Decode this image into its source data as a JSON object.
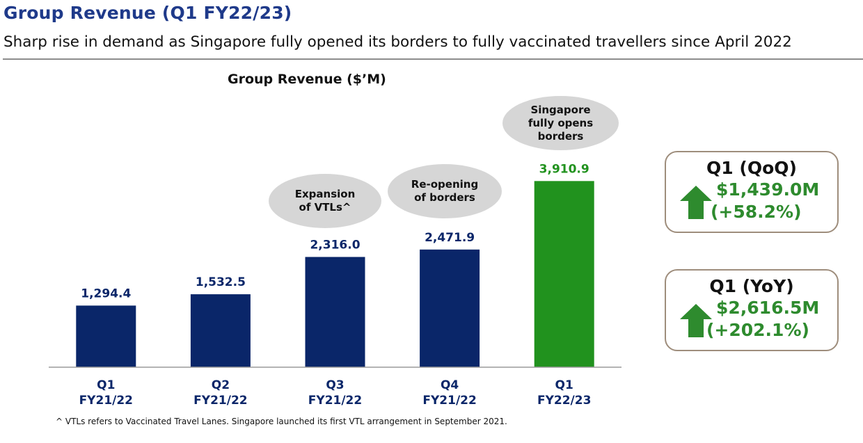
{
  "header": {
    "title": "Group Revenue (Q1 FY22/23)",
    "subtitle": "Sharp rise in demand as Singapore fully opened its borders to fully vaccinated travellers since April 2022"
  },
  "chart_data": {
    "type": "bar",
    "title": "Group Revenue ($’M)",
    "categories": [
      [
        "Q1",
        "FY21/22"
      ],
      [
        "Q2",
        "FY21/22"
      ],
      [
        "Q3",
        "FY21/22"
      ],
      [
        "Q4",
        "FY21/22"
      ],
      [
        "Q1",
        "FY22/23"
      ]
    ],
    "values": [
      1294.4,
      1532.5,
      2316.0,
      2471.9,
      3910.9
    ],
    "value_labels": [
      "1,294.4",
      "1,532.5",
      "2,316.0",
      "2,471.9",
      "3,910.9"
    ],
    "bar_colors": [
      "#0a2669",
      "#0a2669",
      "#0a2669",
      "#0a2669",
      "#21921e"
    ],
    "label_colors": [
      "#0a2669",
      "#0a2669",
      "#0a2669",
      "#0a2669",
      "#21921e"
    ],
    "ylim": [
      0,
      4500
    ],
    "grid": false,
    "xlabel": "",
    "ylabel": ""
  },
  "annotations": [
    "Expansion\nof VTLs^",
    "Re-opening\nof borders",
    "Singapore\nfully opens\nborders"
  ],
  "kpis": {
    "qoq": {
      "title": "Q1 (QoQ)",
      "amount": "$1,439.0M",
      "pct": "(+58.2%)"
    },
    "yoy": {
      "title": "Q1 (YoY)",
      "amount": "$2,616.5M",
      "pct": "(+202.1%)"
    }
  },
  "colors": {
    "navy": "#0a2669",
    "green": "#21921e",
    "kpi_green": "#2e8b2e",
    "title_blue": "#1f3a8a",
    "bubble_grey": "#d6d6d6"
  },
  "footnote": "^ VTLs refers to Vaccinated Travel Lanes. Singapore launched its first VTL arrangement in September 2021."
}
